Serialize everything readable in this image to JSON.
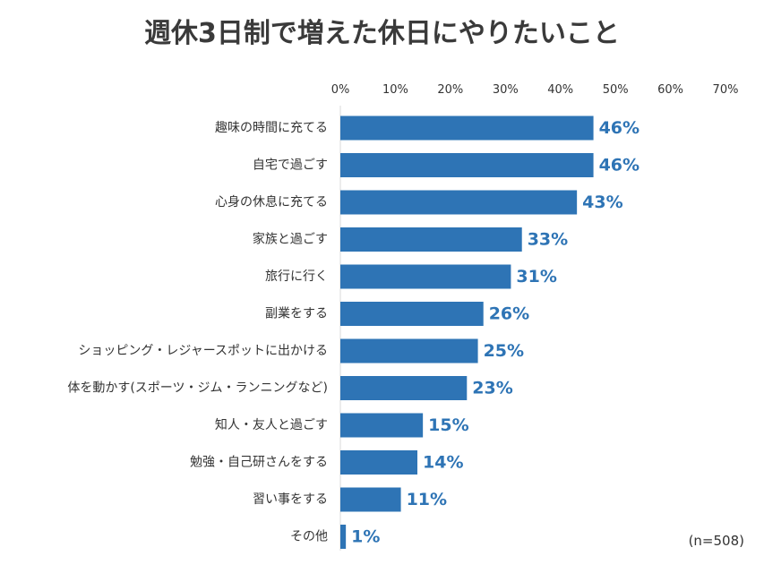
{
  "colors": {
    "bar": "#2e74b5",
    "value_label": "#2e74b5",
    "title": "#3a3a3a",
    "category_label": "#333333",
    "tick_label": "#333333"
  },
  "chart_data": {
    "type": "bar",
    "orientation": "horizontal",
    "title": "週休3日制で増えた休日にやりたいこと",
    "note": "(n=508)",
    "unit": "%",
    "xlim": [
      0,
      70
    ],
    "ticks": [
      0,
      10,
      20,
      30,
      40,
      50,
      60,
      70
    ],
    "tick_labels": [
      "0%",
      "10%",
      "20%",
      "30%",
      "40%",
      "50%",
      "60%",
      "70%"
    ],
    "categories": [
      "趣味の時間に充てる",
      "自宅で過ごす",
      "心身の休息に充てる",
      "家族と過ごす",
      "旅行に行く",
      "副業をする",
      "ショッピング・レジャースポットに出かける",
      "体を動かす(スポーツ・ジム・ランニングなど)",
      "知人・友人と過ごす",
      "勉強・自己研さんをする",
      "習い事をする",
      "その他"
    ],
    "values": [
      46,
      46,
      43,
      33,
      31,
      26,
      25,
      23,
      15,
      14,
      11,
      1
    ],
    "value_labels": [
      "46%",
      "46%",
      "43%",
      "33%",
      "31%",
      "26%",
      "25%",
      "23%",
      "15%",
      "14%",
      "11%",
      "1%"
    ],
    "grid": false,
    "legend": "none"
  }
}
